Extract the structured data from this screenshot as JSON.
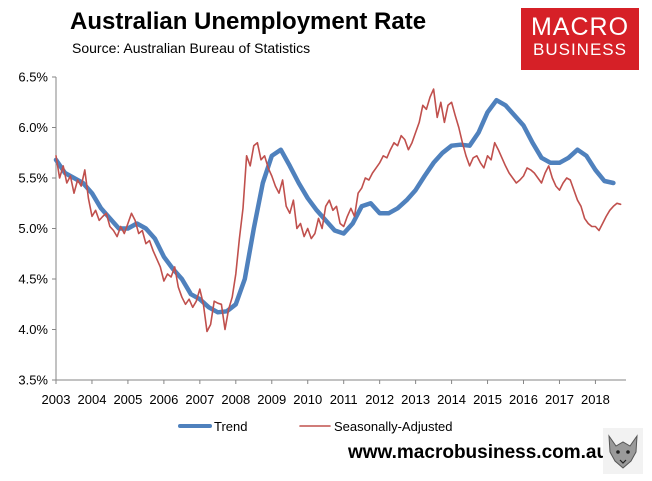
{
  "header": {
    "title": "Australian Unemployment Rate",
    "subtitle": "Source: Australian Bureau of Statistics"
  },
  "logo": {
    "line1": "MACRO",
    "line2": "BUSINESS",
    "color": "#d62027"
  },
  "footer": {
    "url": "www.macrobusiness.com.au",
    "mascot_icon": "wolf-icon"
  },
  "colors": {
    "trend": "#4f81bd",
    "seasonally_adjusted": "#c0504d"
  },
  "chart_data": {
    "type": "line",
    "title": "Australian Unemployment Rate",
    "subtitle": "Source: Australian Bureau of Statistics",
    "xlim": [
      2003,
      2018.85
    ],
    "ylim": [
      3.5,
      6.5
    ],
    "x_tick_labels": [
      "2003",
      "2004",
      "2005",
      "2006",
      "2007",
      "2008",
      "2009",
      "2010",
      "2011",
      "2012",
      "2013",
      "2014",
      "2015",
      "2016",
      "2017",
      "2018"
    ],
    "y_tick_labels": [
      "3.5%",
      "4.0%",
      "4.5%",
      "5.0%",
      "5.5%",
      "6.0%",
      "6.5%"
    ],
    "grid": false,
    "legend": "bottom",
    "series": [
      {
        "name": "Trend",
        "color": "#4f81bd",
        "points": [
          [
            2003.0,
            5.68
          ],
          [
            2003.25,
            5.55
          ],
          [
            2003.5,
            5.5
          ],
          [
            2003.75,
            5.45
          ],
          [
            2004.0,
            5.35
          ],
          [
            2004.25,
            5.2
          ],
          [
            2004.5,
            5.1
          ],
          [
            2004.75,
            5.0
          ],
          [
            2005.0,
            5.0
          ],
          [
            2005.25,
            5.05
          ],
          [
            2005.5,
            5.0
          ],
          [
            2005.75,
            4.9
          ],
          [
            2006.0,
            4.72
          ],
          [
            2006.25,
            4.6
          ],
          [
            2006.5,
            4.5
          ],
          [
            2006.75,
            4.35
          ],
          [
            2007.0,
            4.3
          ],
          [
            2007.25,
            4.22
          ],
          [
            2007.5,
            4.17
          ],
          [
            2007.75,
            4.18
          ],
          [
            2008.0,
            4.25
          ],
          [
            2008.25,
            4.5
          ],
          [
            2008.5,
            5.0
          ],
          [
            2008.75,
            5.45
          ],
          [
            2009.0,
            5.72
          ],
          [
            2009.25,
            5.78
          ],
          [
            2009.5,
            5.62
          ],
          [
            2009.75,
            5.45
          ],
          [
            2010.0,
            5.3
          ],
          [
            2010.25,
            5.18
          ],
          [
            2010.5,
            5.08
          ],
          [
            2010.75,
            4.98
          ],
          [
            2011.0,
            4.95
          ],
          [
            2011.25,
            5.05
          ],
          [
            2011.5,
            5.22
          ],
          [
            2011.75,
            5.25
          ],
          [
            2012.0,
            5.15
          ],
          [
            2012.25,
            5.15
          ],
          [
            2012.5,
            5.2
          ],
          [
            2012.75,
            5.28
          ],
          [
            2013.0,
            5.38
          ],
          [
            2013.25,
            5.52
          ],
          [
            2013.5,
            5.65
          ],
          [
            2013.75,
            5.75
          ],
          [
            2014.0,
            5.82
          ],
          [
            2014.25,
            5.83
          ],
          [
            2014.5,
            5.82
          ],
          [
            2014.75,
            5.95
          ],
          [
            2015.0,
            6.15
          ],
          [
            2015.25,
            6.27
          ],
          [
            2015.5,
            6.22
          ],
          [
            2015.75,
            6.12
          ],
          [
            2016.0,
            6.02
          ],
          [
            2016.25,
            5.85
          ],
          [
            2016.5,
            5.7
          ],
          [
            2016.75,
            5.65
          ],
          [
            2017.0,
            5.65
          ],
          [
            2017.25,
            5.7
          ],
          [
            2017.5,
            5.78
          ],
          [
            2017.75,
            5.72
          ],
          [
            2018.0,
            5.58
          ],
          [
            2018.25,
            5.47
          ],
          [
            2018.5,
            5.45
          ]
        ]
      },
      {
        "name": "Seasonally-Adjusted",
        "color": "#c0504d",
        "points": [
          [
            2003.0,
            5.72
          ],
          [
            2003.1,
            5.5
          ],
          [
            2003.2,
            5.62
          ],
          [
            2003.3,
            5.45
          ],
          [
            2003.4,
            5.52
          ],
          [
            2003.5,
            5.35
          ],
          [
            2003.6,
            5.48
          ],
          [
            2003.7,
            5.42
          ],
          [
            2003.8,
            5.58
          ],
          [
            2003.9,
            5.3
          ],
          [
            2004.0,
            5.12
          ],
          [
            2004.1,
            5.18
          ],
          [
            2004.2,
            5.08
          ],
          [
            2004.3,
            5.12
          ],
          [
            2004.4,
            5.15
          ],
          [
            2004.5,
            5.02
          ],
          [
            2004.6,
            4.98
          ],
          [
            2004.7,
            4.92
          ],
          [
            2004.8,
            5.02
          ],
          [
            2004.9,
            4.95
          ],
          [
            2005.0,
            5.05
          ],
          [
            2005.1,
            5.15
          ],
          [
            2005.2,
            5.08
          ],
          [
            2005.3,
            4.95
          ],
          [
            2005.4,
            4.98
          ],
          [
            2005.5,
            4.85
          ],
          [
            2005.6,
            4.88
          ],
          [
            2005.7,
            4.78
          ],
          [
            2005.8,
            4.7
          ],
          [
            2005.9,
            4.62
          ],
          [
            2006.0,
            4.48
          ],
          [
            2006.1,
            4.55
          ],
          [
            2006.2,
            4.52
          ],
          [
            2006.3,
            4.62
          ],
          [
            2006.4,
            4.42
          ],
          [
            2006.5,
            4.32
          ],
          [
            2006.6,
            4.25
          ],
          [
            2006.7,
            4.3
          ],
          [
            2006.8,
            4.22
          ],
          [
            2006.9,
            4.28
          ],
          [
            2007.0,
            4.4
          ],
          [
            2007.1,
            4.25
          ],
          [
            2007.2,
            3.98
          ],
          [
            2007.3,
            4.05
          ],
          [
            2007.4,
            4.28
          ],
          [
            2007.5,
            4.26
          ],
          [
            2007.6,
            4.25
          ],
          [
            2007.7,
            4.0
          ],
          [
            2007.8,
            4.2
          ],
          [
            2007.9,
            4.32
          ],
          [
            2008.0,
            4.55
          ],
          [
            2008.1,
            4.9
          ],
          [
            2008.2,
            5.2
          ],
          [
            2008.3,
            5.72
          ],
          [
            2008.4,
            5.62
          ],
          [
            2008.5,
            5.82
          ],
          [
            2008.6,
            5.85
          ],
          [
            2008.7,
            5.68
          ],
          [
            2008.8,
            5.72
          ],
          [
            2008.9,
            5.6
          ],
          [
            2009.0,
            5.52
          ],
          [
            2009.1,
            5.42
          ],
          [
            2009.2,
            5.35
          ],
          [
            2009.3,
            5.48
          ],
          [
            2009.4,
            5.22
          ],
          [
            2009.5,
            5.15
          ],
          [
            2009.6,
            5.28
          ],
          [
            2009.7,
            5.0
          ],
          [
            2009.8,
            5.05
          ],
          [
            2009.9,
            4.92
          ],
          [
            2010.0,
            5.0
          ],
          [
            2010.1,
            4.9
          ],
          [
            2010.2,
            4.95
          ],
          [
            2010.3,
            5.1
          ],
          [
            2010.4,
            5.0
          ],
          [
            2010.5,
            5.22
          ],
          [
            2010.6,
            5.28
          ],
          [
            2010.7,
            5.18
          ],
          [
            2010.8,
            5.22
          ],
          [
            2010.9,
            5.05
          ],
          [
            2011.0,
            5.02
          ],
          [
            2011.1,
            5.12
          ],
          [
            2011.2,
            5.2
          ],
          [
            2011.3,
            5.12
          ],
          [
            2011.4,
            5.35
          ],
          [
            2011.5,
            5.4
          ],
          [
            2011.6,
            5.5
          ],
          [
            2011.7,
            5.48
          ],
          [
            2011.8,
            5.55
          ],
          [
            2011.9,
            5.6
          ],
          [
            2012.0,
            5.65
          ],
          [
            2012.1,
            5.72
          ],
          [
            2012.2,
            5.7
          ],
          [
            2012.3,
            5.78
          ],
          [
            2012.4,
            5.85
          ],
          [
            2012.5,
            5.82
          ],
          [
            2012.6,
            5.92
          ],
          [
            2012.7,
            5.88
          ],
          [
            2012.8,
            5.78
          ],
          [
            2012.9,
            5.85
          ],
          [
            2013.0,
            5.95
          ],
          [
            2013.1,
            6.05
          ],
          [
            2013.2,
            6.22
          ],
          [
            2013.3,
            6.18
          ],
          [
            2013.4,
            6.3
          ],
          [
            2013.5,
            6.38
          ],
          [
            2013.6,
            6.1
          ],
          [
            2013.7,
            6.25
          ],
          [
            2013.8,
            6.05
          ],
          [
            2013.9,
            6.22
          ],
          [
            2014.0,
            6.25
          ],
          [
            2014.1,
            6.12
          ],
          [
            2014.2,
            6.0
          ],
          [
            2014.3,
            5.85
          ],
          [
            2014.4,
            5.72
          ],
          [
            2014.5,
            5.62
          ],
          [
            2014.6,
            5.7
          ],
          [
            2014.7,
            5.72
          ],
          [
            2014.8,
            5.65
          ],
          [
            2014.9,
            5.6
          ],
          [
            2015.0,
            5.72
          ],
          [
            2015.1,
            5.68
          ],
          [
            2015.2,
            5.85
          ],
          [
            2015.3,
            5.78
          ],
          [
            2015.4,
            5.7
          ],
          [
            2015.5,
            5.62
          ],
          [
            2015.6,
            5.55
          ],
          [
            2015.7,
            5.5
          ],
          [
            2015.8,
            5.45
          ],
          [
            2015.9,
            5.48
          ],
          [
            2016.0,
            5.52
          ],
          [
            2016.1,
            5.6
          ],
          [
            2016.2,
            5.58
          ],
          [
            2016.3,
            5.55
          ],
          [
            2016.4,
            5.5
          ],
          [
            2016.5,
            5.45
          ],
          [
            2016.6,
            5.55
          ],
          [
            2016.7,
            5.62
          ],
          [
            2016.8,
            5.5
          ],
          [
            2016.9,
            5.42
          ],
          [
            2017.0,
            5.38
          ],
          [
            2017.1,
            5.45
          ],
          [
            2017.2,
            5.5
          ],
          [
            2017.3,
            5.48
          ],
          [
            2017.4,
            5.38
          ],
          [
            2017.5,
            5.28
          ],
          [
            2017.6,
            5.22
          ],
          [
            2017.7,
            5.1
          ],
          [
            2017.8,
            5.05
          ],
          [
            2017.9,
            5.02
          ],
          [
            2018.0,
            5.02
          ],
          [
            2018.1,
            4.98
          ],
          [
            2018.2,
            5.05
          ],
          [
            2018.3,
            5.12
          ],
          [
            2018.4,
            5.18
          ],
          [
            2018.5,
            5.22
          ],
          [
            2018.6,
            5.25
          ],
          [
            2018.7,
            5.24
          ]
        ]
      }
    ]
  }
}
